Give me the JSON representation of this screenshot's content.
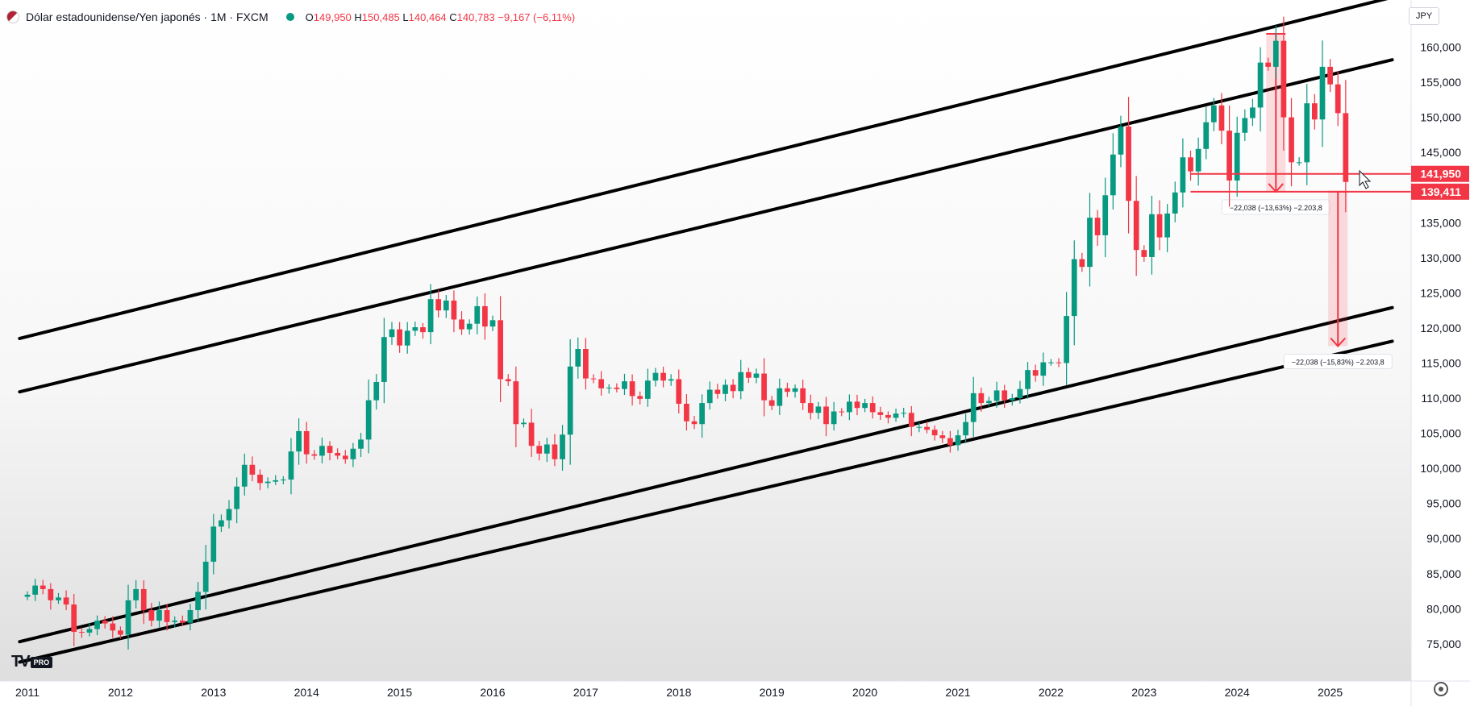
{
  "header": {
    "symbol_title": "Dólar estadounidense/Yen japonés · 1M · FXCM",
    "open_key": "O",
    "open": "149,950",
    "high_key": "H",
    "high": "150,485",
    "low_key": "L",
    "low": "140,464",
    "close_key": "C",
    "close": "140,783",
    "change": "−9,167 (−6,11%)"
  },
  "currency_button": "JPY",
  "logo": {
    "mark": "TV",
    "badge": "PRO"
  },
  "colors": {
    "up": "#089981",
    "down": "#f23645",
    "line": "#000000",
    "accent": "#f23645"
  },
  "chart_data": {
    "type": "candlestick",
    "title": "",
    "xlabel": "",
    "ylabel": "",
    "ylim": [
      70,
      167
    ],
    "x_tick_labels": [
      "2011",
      "2012",
      "2013",
      "2014",
      "2015",
      "2016",
      "2017",
      "2018",
      "2019",
      "2020",
      "2021",
      "2022",
      "2023",
      "2024",
      "2025"
    ],
    "y_tick_labels": [
      "160,000",
      "155,000",
      "150,000",
      "145,000",
      "140,000",
      "135,000",
      "130,000",
      "125,000",
      "120,000",
      "115,000",
      "110,000",
      "105,000",
      "100,000",
      "95,000",
      "90,000",
      "85,000",
      "80,000",
      "75,000"
    ],
    "y_tick_values": [
      160,
      155,
      150,
      145,
      140,
      135,
      130,
      125,
      120,
      115,
      110,
      105,
      100,
      95,
      90,
      85,
      80,
      75
    ],
    "year_start": 2011,
    "price_labels": [
      {
        "value": 141.95,
        "label": "141,950"
      },
      {
        "value": 139.411,
        "label": "139,411"
      }
    ],
    "measurements": [
      {
        "label": "−22,038 (−13,63%) −2.203,8",
        "from_date": "2024-06",
        "from_price": 161.9,
        "to_price": 139.4
      },
      {
        "label": "−22,038 (−15,83%) −2.203,8",
        "from_date": "2025-02",
        "from_price": 139.4,
        "to_price": 117.4
      }
    ],
    "channel_lines": [
      {
        "name": "",
        "p1": [
          "2010-12",
          118.5
        ],
        "p2": [
          "2025-09",
          167.1
        ]
      },
      {
        "name": "",
        "p1": [
          "2010-12",
          110.9
        ],
        "p2": [
          "2025-09",
          158.2
        ]
      },
      {
        "name": "",
        "p1": [
          "2010-12",
          75.3
        ],
        "p2": [
          "2025-09",
          122.9
        ]
      },
      {
        "name": "",
        "p1": [
          "2010-12",
          72.4
        ],
        "p2": [
          "2025-09",
          118.1
        ]
      }
    ],
    "monthly_close": [
      82.0,
      83.3,
      82.8,
      81.2,
      81.6,
      80.6,
      76.7,
      76.6,
      77.1,
      78.3,
      77.9,
      76.9,
      76.3,
      81.2,
      82.8,
      79.8,
      78.3,
      79.8,
      78.1,
      78.3,
      78.0,
      79.8,
      82.4,
      86.7,
      91.7,
      92.6,
      94.2,
      97.4,
      100.5,
      99.1,
      97.9,
      98.1,
      98.3,
      98.4,
      102.4,
      105.3,
      102.0,
      101.8,
      103.2,
      102.2,
      101.8,
      101.3,
      102.8,
      104.1,
      109.7,
      112.3,
      118.7,
      119.8,
      117.5,
      119.6,
      120.1,
      119.4,
      124.1,
      122.5,
      123.9,
      121.2,
      119.8,
      120.6,
      123.1,
      120.2,
      121.1,
      112.7,
      112.4,
      106.3,
      106.5,
      103.2,
      102.1,
      103.4,
      101.3,
      104.8,
      114.5,
      117.0,
      112.8,
      112.7,
      111.4,
      111.5,
      111.3,
      112.4,
      110.3,
      109.9,
      112.5,
      113.6,
      112.5,
      112.7,
      109.2,
      106.7,
      106.3,
      109.3,
      111.2,
      110.6,
      111.9,
      111.0,
      113.7,
      112.9,
      113.5,
      109.7,
      108.9,
      111.4,
      110.9,
      111.4,
      109.3,
      107.9,
      108.8,
      106.3,
      108.1,
      108.0,
      109.5,
      108.6,
      109.3,
      108.0,
      107.6,
      107.2,
      107.8,
      107.9,
      105.9,
      105.9,
      105.5,
      104.7,
      104.3,
      103.3,
      104.7,
      106.6,
      110.7,
      109.3,
      109.6,
      111.1,
      109.7,
      110.0,
      111.3,
      114.0,
      113.2,
      115.1,
      115.1,
      115.0,
      121.7,
      129.8,
      128.7,
      135.7,
      133.2,
      138.9,
      144.7,
      148.7,
      138.1,
      131.1,
      130.1,
      136.2,
      132.9,
      136.3,
      139.3,
      144.3,
      142.3,
      145.5,
      149.3,
      151.7,
      148.1,
      141.0,
      147.8,
      149.9,
      151.4,
      157.8,
      157.2,
      160.9,
      150.0,
      143.6,
      143.6,
      152.0,
      149.7,
      157.2,
      154.7,
      150.6,
      140.8
    ]
  }
}
